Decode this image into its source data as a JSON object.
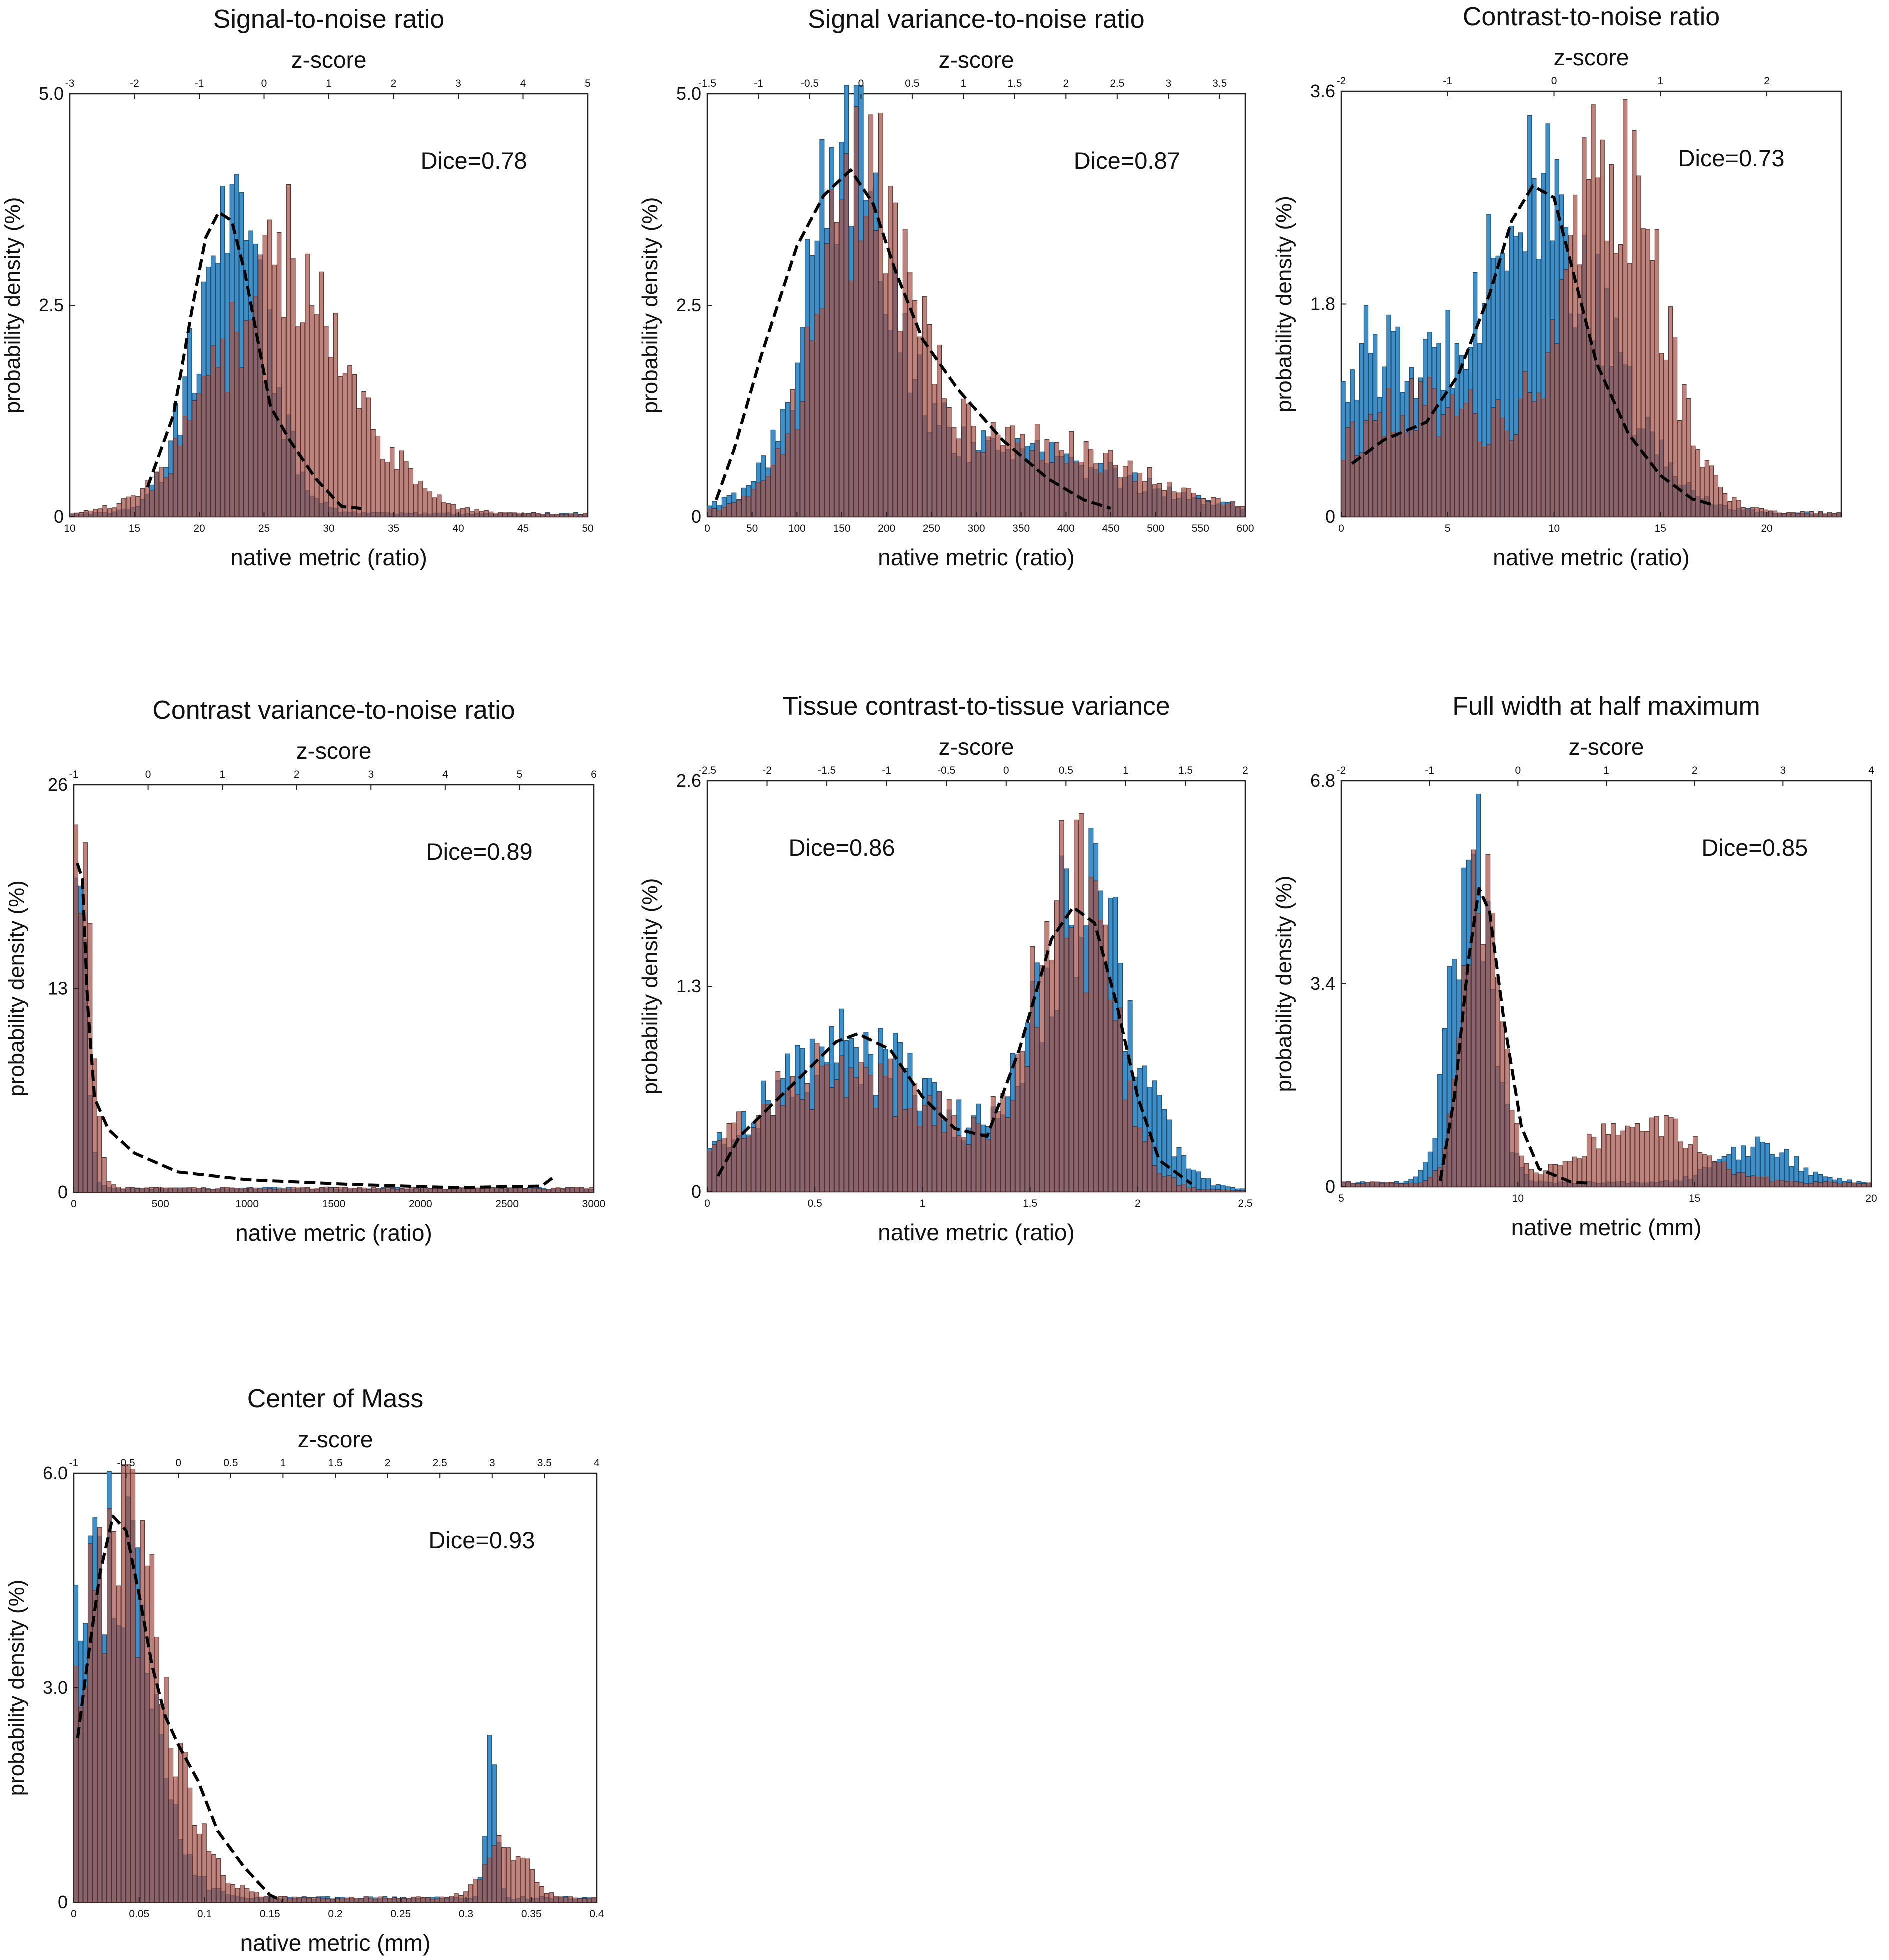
{
  "colors": {
    "blue": "#3f8fc9",
    "red": "#a4554c",
    "overlap": "#7b4443",
    "axis": "#222222",
    "curve": "#000000"
  },
  "common": {
    "top_axis_label": "z-score",
    "ylabel": "probability density (%)"
  },
  "chart_data": [
    {
      "type": "bar",
      "title": "Signal-to-noise ratio",
      "xlabel": "native metric (ratio)",
      "xlim": [
        10,
        50
      ],
      "xticks": [
        10,
        15,
        20,
        25,
        30,
        35,
        40,
        45,
        50
      ],
      "ylim": [
        0,
        5.0
      ],
      "yticks": [
        "0",
        "2.5",
        "5.0"
      ],
      "zlim": [
        -3,
        5
      ],
      "zticks": [
        -3,
        -2,
        -1,
        0,
        1,
        2,
        3,
        4,
        5
      ],
      "dice": "Dice=0.78",
      "dice_pos": "top-right",
      "blue_peaks": [
        [
          22.5,
          3.3,
          2.8
        ]
      ],
      "red_peaks": [
        [
          26.5,
          3.0,
          5.0
        ]
      ],
      "curve": [
        [
          16,
          0.35
        ],
        [
          18,
          1.2
        ],
        [
          19.5,
          2.5
        ],
        [
          20.5,
          3.3
        ],
        [
          21.5,
          3.6
        ],
        [
          22.5,
          3.5
        ],
        [
          23.5,
          2.9
        ],
        [
          24.5,
          2.1
        ],
        [
          25.5,
          1.3
        ],
        [
          27,
          0.9
        ],
        [
          29,
          0.45
        ],
        [
          31,
          0.12
        ],
        [
          32.5,
          0.1
        ]
      ]
    },
    {
      "type": "bar",
      "title": "Signal variance-to-noise ratio",
      "xlabel": "native metric (ratio)",
      "xlim": [
        0,
        600
      ],
      "xticks": [
        0,
        50,
        100,
        150,
        200,
        250,
        300,
        350,
        400,
        450,
        500,
        550,
        600
      ],
      "ylim": [
        0,
        5.0
      ],
      "yticks": [
        "0",
        "2.5",
        "5.0"
      ],
      "zlim": [
        -1.5,
        3.75
      ],
      "zticks": [
        -1.5,
        -1,
        -0.5,
        0,
        0.5,
        1,
        1.5,
        2,
        2.5,
        3,
        3.5
      ],
      "dice": "Dice=0.87",
      "dice_pos": "top-right",
      "blue_peaks": [
        [
          160,
          3.9,
          45
        ],
        [
          300,
          0.8,
          140
        ]
      ],
      "red_peaks": [
        [
          175,
          3.4,
          50
        ],
        [
          330,
          0.9,
          130
        ]
      ],
      "curve": [
        [
          10,
          0.2
        ],
        [
          30,
          0.8
        ],
        [
          60,
          1.9
        ],
        [
          100,
          3.2
        ],
        [
          130,
          3.8
        ],
        [
          160,
          4.1
        ],
        [
          185,
          3.7
        ],
        [
          210,
          2.9
        ],
        [
          240,
          2.1
        ],
        [
          280,
          1.5
        ],
        [
          330,
          0.9
        ],
        [
          380,
          0.45
        ],
        [
          420,
          0.2
        ],
        [
          450,
          0.1
        ]
      ]
    },
    {
      "type": "bar",
      "title": "Contrast-to-noise ratio",
      "xlabel": "native metric (ratio)",
      "xlim": [
        0,
        23.5
      ],
      "xticks": [
        0,
        5,
        10,
        15,
        20
      ],
      "ylim": [
        0,
        3.6
      ],
      "yticks": [
        "0",
        "1.8",
        "3.6"
      ],
      "zlim": [
        -2,
        2.7
      ],
      "zticks": [
        -2,
        -1,
        0,
        1,
        2
      ],
      "dice": "Dice=0.73",
      "dice_pos": "top-right",
      "blue_peaks": [
        [
          9,
          2.6,
          3.3
        ],
        [
          1,
          1.2,
          2
        ]
      ],
      "red_peaks": [
        [
          12.8,
          2.9,
          2.2
        ],
        [
          4,
          0.9,
          4
        ]
      ],
      "curve": [
        [
          0.5,
          0.45
        ],
        [
          2,
          0.65
        ],
        [
          4,
          0.8
        ],
        [
          5.5,
          1.2
        ],
        [
          7,
          1.9
        ],
        [
          8,
          2.5
        ],
        [
          9,
          2.8
        ],
        [
          10,
          2.7
        ],
        [
          11,
          2.0
        ],
        [
          12,
          1.3
        ],
        [
          13.5,
          0.7
        ],
        [
          15,
          0.35
        ],
        [
          16.5,
          0.15
        ],
        [
          17.5,
          0.1
        ]
      ]
    },
    {
      "type": "bar",
      "title": "Contrast variance-to-noise ratio",
      "xlabel": "native metric (ratio)",
      "xlim": [
        0,
        3000
      ],
      "xticks": [
        0,
        500,
        1000,
        1500,
        2000,
        2500,
        3000
      ],
      "ylim": [
        0,
        26
      ],
      "yticks": [
        "0",
        "13",
        "26"
      ],
      "zlim": [
        -1,
        6
      ],
      "zticks": [
        -1,
        0,
        1,
        2,
        3,
        4,
        5,
        6
      ],
      "dice": "Dice=0.89",
      "dice_pos": "top-right",
      "blue_peaks": [
        [
          30,
          21,
          45
        ]
      ],
      "red_peaks": [
        [
          40,
          22,
          60
        ]
      ],
      "curve": [
        [
          20,
          21
        ],
        [
          50,
          20
        ],
        [
          80,
          12
        ],
        [
          120,
          6
        ],
        [
          200,
          4
        ],
        [
          350,
          2.5
        ],
        [
          600,
          1.3
        ],
        [
          1000,
          0.8
        ],
        [
          1600,
          0.5
        ],
        [
          2200,
          0.3
        ],
        [
          2700,
          0.4
        ],
        [
          2760,
          0.9
        ]
      ]
    },
    {
      "type": "bar",
      "title": "Tissue contrast-to-tissue variance",
      "xlabel": "native metric (ratio)",
      "xlim": [
        0,
        2.5
      ],
      "xticks": [
        0,
        0.5,
        1,
        1.5,
        2,
        2.5
      ],
      "ylim": [
        0,
        2.6
      ],
      "yticks": [
        "0",
        "1.3",
        "2.6"
      ],
      "zlim": [
        -2.5,
        2
      ],
      "zticks": [
        -2.5,
        -2,
        -1.5,
        -1,
        -0.5,
        0,
        0.5,
        1,
        1.5,
        2
      ],
      "dice": "Dice=0.86",
      "dice_pos": "top-left",
      "blue_peaks": [
        [
          0.65,
          0.9,
          0.4
        ],
        [
          1.75,
          1.8,
          0.22
        ]
      ],
      "red_peaks": [
        [
          0.65,
          0.75,
          0.45
        ],
        [
          1.7,
          1.85,
          0.18
        ]
      ],
      "curve": [
        [
          0.05,
          0.1
        ],
        [
          0.15,
          0.35
        ],
        [
          0.3,
          0.55
        ],
        [
          0.45,
          0.75
        ],
        [
          0.6,
          0.95
        ],
        [
          0.7,
          1.0
        ],
        [
          0.85,
          0.9
        ],
        [
          1.0,
          0.6
        ],
        [
          1.15,
          0.4
        ],
        [
          1.3,
          0.35
        ],
        [
          1.45,
          0.9
        ],
        [
          1.6,
          1.6
        ],
        [
          1.7,
          1.8
        ],
        [
          1.8,
          1.7
        ],
        [
          1.9,
          1.2
        ],
        [
          2.0,
          0.6
        ],
        [
          2.1,
          0.2
        ],
        [
          2.25,
          0.05
        ]
      ]
    },
    {
      "type": "bar",
      "title": "Full width at half maximum",
      "xlabel": "native metric (mm)",
      "xlim": [
        5,
        20
      ],
      "xticks": [
        5,
        10,
        15,
        20
      ],
      "ylim": [
        0,
        6.8
      ],
      "yticks": [
        "0",
        "3.4",
        "6.8"
      ],
      "zlim": [
        -2,
        4
      ],
      "zticks": [
        -2,
        -1,
        0,
        1,
        2,
        3,
        4
      ],
      "dice": "Dice=0.85",
      "dice_pos": "top-right",
      "blue_peaks": [
        [
          8.7,
          5.8,
          0.55
        ],
        [
          16.8,
          0.6,
          1.0
        ]
      ],
      "red_peaks": [
        [
          9.0,
          5.5,
          0.5
        ],
        [
          13.5,
          1.0,
          1.5
        ]
      ],
      "curve": [
        [
          7.8,
          0.1
        ],
        [
          8.2,
          1.5
        ],
        [
          8.6,
          3.8
        ],
        [
          8.9,
          5.0
        ],
        [
          9.2,
          4.6
        ],
        [
          9.6,
          2.8
        ],
        [
          10.1,
          1.0
        ],
        [
          10.6,
          0.3
        ],
        [
          11.5,
          0.08
        ],
        [
          12,
          0.06
        ]
      ]
    },
    {
      "type": "bar",
      "title": "Center of Mass",
      "xlabel": "native metric (mm)",
      "xlim": [
        0,
        0.4
      ],
      "xticks": [
        0,
        0.05,
        0.1,
        0.15,
        0.2,
        0.25,
        0.3,
        0.35,
        0.4
      ],
      "ylim": [
        0,
        6.0
      ],
      "yticks": [
        "0",
        "3.0",
        "6.0"
      ],
      "zlim": [
        -1,
        4
      ],
      "zticks": [
        -1,
        -0.5,
        0,
        0.5,
        1,
        1.5,
        2,
        2.5,
        3,
        3.5,
        4
      ],
      "dice": "Dice=0.93",
      "dice_pos": "top-right",
      "blue_peaks": [
        [
          0.025,
          5.2,
          0.03
        ],
        [
          0.32,
          2.7,
          0.004
        ]
      ],
      "red_peaks": [
        [
          0.035,
          5.0,
          0.035
        ],
        [
          0.33,
          0.8,
          0.015
        ]
      ],
      "curve": [
        [
          0.003,
          2.3
        ],
        [
          0.01,
          3.3
        ],
        [
          0.02,
          4.6
        ],
        [
          0.03,
          5.4
        ],
        [
          0.04,
          5.2
        ],
        [
          0.05,
          4.3
        ],
        [
          0.06,
          3.3
        ],
        [
          0.07,
          2.6
        ],
        [
          0.08,
          2.2
        ],
        [
          0.095,
          1.7
        ],
        [
          0.11,
          1.0
        ],
        [
          0.13,
          0.5
        ],
        [
          0.15,
          0.1
        ],
        [
          0.16,
          0.02
        ]
      ]
    }
  ]
}
